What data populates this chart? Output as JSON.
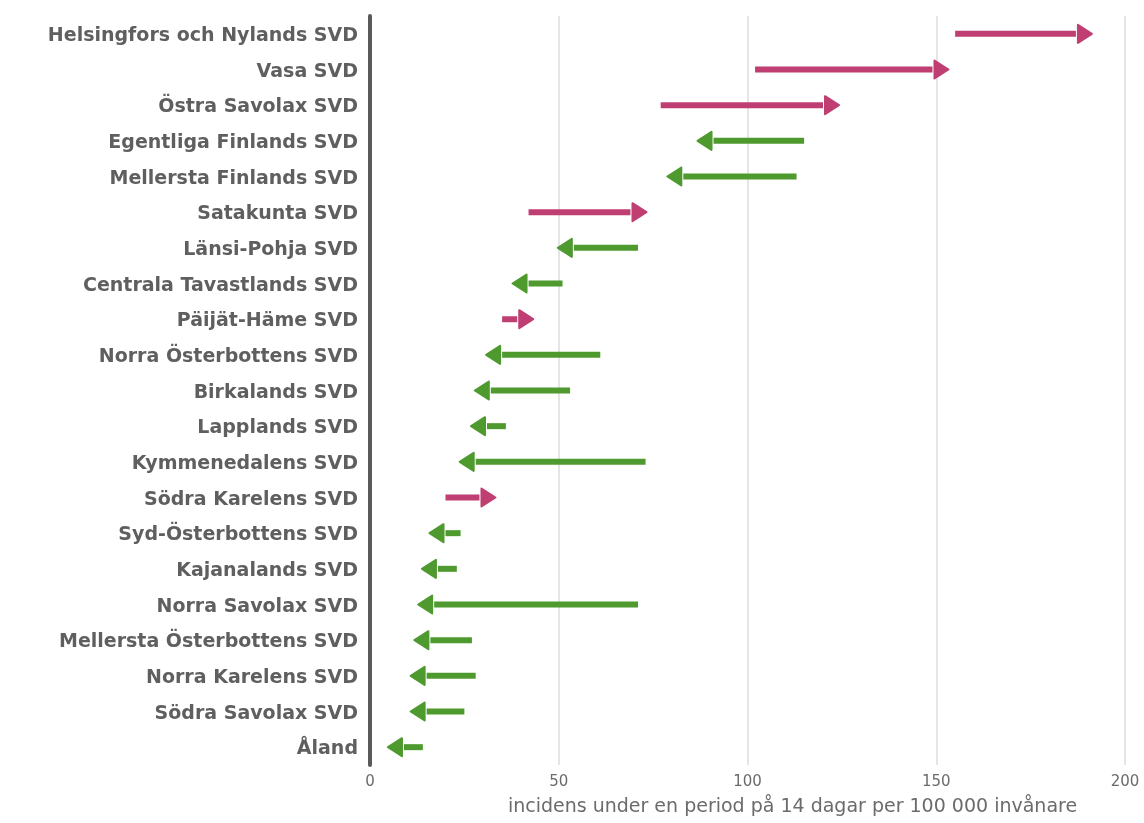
{
  "chart_data": {
    "type": "bar",
    "orientation": "horizontal",
    "xlabel": "incidens under en period på 14 dagar per 100 000 invånare",
    "categories": [
      "Helsingfors och Nylands SVD",
      "Vasa SVD",
      "Östra Savolax SVD",
      "Egentliga Finlands SVD",
      "Mellersta Finlands SVD",
      "Satakunta SVD",
      "Länsi-Pohja SVD",
      "Centrala Tavastlands SVD",
      "Päijät-Häme SVD",
      "Norra Österbottens SVD",
      "Birkalands SVD",
      "Lapplands SVD",
      "Kymmenedalens SVD",
      "Södra Karelens SVD",
      "Syd-Österbottens SVD",
      "Kajanalands SVD",
      "Norra Savolax SVD",
      "Mellersta Österbottens SVD",
      "Norra Karelens SVD",
      "Södra Savolax SVD",
      "Åland"
    ],
    "base": [
      155,
      102,
      77,
      115,
      113,
      42,
      71,
      51,
      35,
      61,
      53,
      36,
      73,
      20,
      24,
      23,
      71,
      27,
      28,
      25,
      14
    ],
    "values": [
      32,
      47,
      43,
      -24,
      -30,
      27,
      -17,
      -9,
      4,
      -26,
      -21,
      -5,
      -45,
      9,
      -4,
      -5,
      -54,
      -11,
      -13,
      -10,
      -5
    ],
    "colors": [
      "#c03f73",
      "#c03f73",
      "#c03f73",
      "#4e9a2f",
      "#4e9a2f",
      "#c03f73",
      "#4e9a2f",
      "#4e9a2f",
      "#c03f73",
      "#4e9a2f",
      "#4e9a2f",
      "#4e9a2f",
      "#4e9a2f",
      "#c03f73",
      "#4e9a2f",
      "#4e9a2f",
      "#4e9a2f",
      "#4e9a2f",
      "#4e9a2f",
      "#4e9a2f",
      "#4e9a2f"
    ],
    "xlim": [
      0,
      200
    ],
    "xticks": [
      0,
      50,
      100,
      150,
      200
    ],
    "grid": "x"
  }
}
